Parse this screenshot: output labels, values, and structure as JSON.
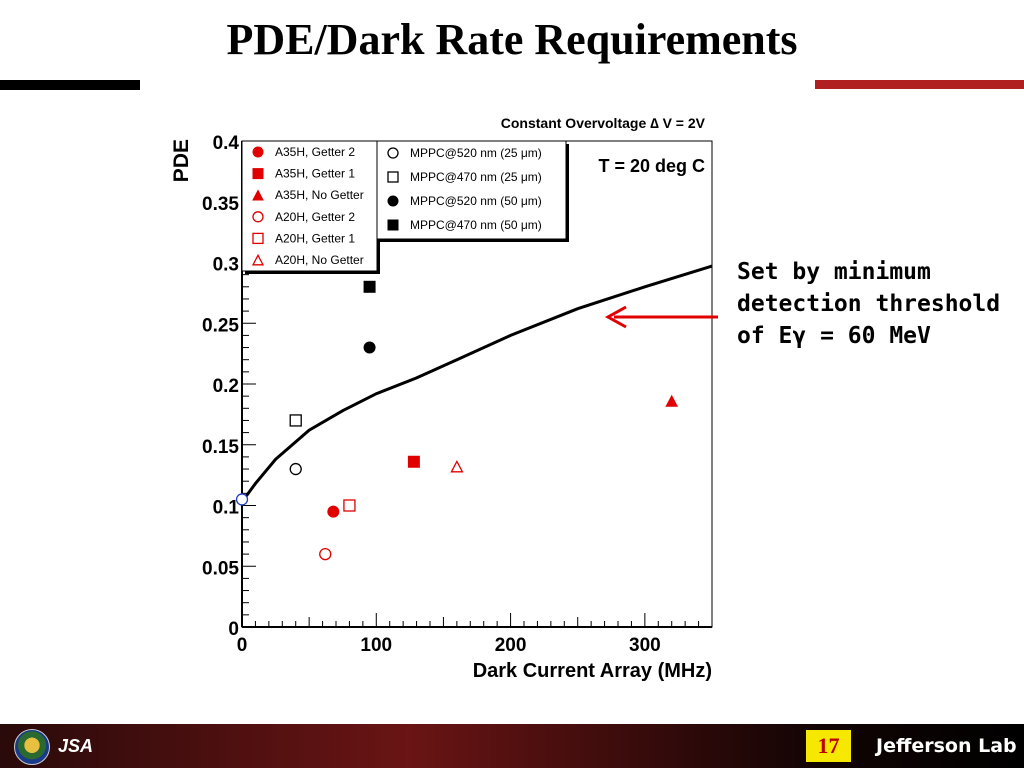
{
  "slide": {
    "title": "PDE/Dark Rate Requirements",
    "page_number": "17",
    "annotation_lines": [
      "Set by minimum",
      "detection threshold",
      "of Eγ = 60 MeV"
    ]
  },
  "footer": {
    "left_logo_text": "JSA",
    "right_logo_text": "Jefferson Lab"
  },
  "colors": {
    "red": "#e00000",
    "black": "#000000",
    "arrow": "#e00000",
    "accent_bar": "#b02020",
    "page_box": "#f6e800"
  },
  "chart_data": {
    "type": "scatter",
    "title": "Constant Overvoltage ∆ V = 2V",
    "xlabel": "Dark Current Array (MHz)",
    "ylabel": "PDE",
    "xlim": [
      0,
      350
    ],
    "ylim": [
      0,
      0.4
    ],
    "x_ticks": [
      0,
      100,
      200,
      300
    ],
    "y_ticks": [
      0,
      0.05,
      0.1,
      0.15,
      0.2,
      0.25,
      0.3,
      0.35,
      0.4
    ],
    "x_tick_labels": [
      "0",
      "100",
      "200",
      "300"
    ],
    "y_tick_labels": [
      "0",
      "0.05",
      "0.1",
      "0.15",
      "0.2",
      "0.25",
      "0.3",
      "0.35",
      "0.4"
    ],
    "text_annotation": "T = 20 deg C",
    "grid": false,
    "legends": [
      {
        "placement": "top-left",
        "entries": [
          0,
          1,
          2,
          3,
          4,
          5
        ]
      },
      {
        "placement": "top-center",
        "entries": [
          6,
          7,
          8,
          9
        ]
      }
    ],
    "series": [
      {
        "name": "A35H, Getter 2",
        "marker": "circle",
        "filled": true,
        "color": "#e00000",
        "points": [
          [
            68,
            0.095
          ]
        ]
      },
      {
        "name": "A35H, Getter 1",
        "marker": "square",
        "filled": true,
        "color": "#e00000",
        "points": [
          [
            128,
            0.136
          ]
        ]
      },
      {
        "name": "A35H, No Getter",
        "marker": "triangle",
        "filled": true,
        "color": "#e00000",
        "points": [
          [
            320,
            0.186
          ]
        ]
      },
      {
        "name": "A20H, Getter 2",
        "marker": "circle",
        "filled": false,
        "color": "#e00000",
        "points": [
          [
            62,
            0.06
          ]
        ]
      },
      {
        "name": "A20H, Getter 1",
        "marker": "square",
        "filled": false,
        "color": "#e00000",
        "points": [
          [
            80,
            0.1
          ]
        ]
      },
      {
        "name": "A20H, No Getter",
        "marker": "triangle",
        "filled": false,
        "color": "#e00000",
        "points": [
          [
            160,
            0.132
          ]
        ]
      },
      {
        "name": "MPPC@520 nm (25 μm)",
        "marker": "circle",
        "filled": false,
        "color": "#000000",
        "points": [
          [
            40,
            0.13
          ]
        ]
      },
      {
        "name": "MPPC@470 nm (25 μm)",
        "marker": "square",
        "filled": false,
        "color": "#000000",
        "points": [
          [
            40,
            0.17
          ]
        ]
      },
      {
        "name": "MPPC@520 nm (50 μm)",
        "marker": "circle",
        "filled": true,
        "color": "#000000",
        "points": [
          [
            95,
            0.23
          ]
        ]
      },
      {
        "name": "MPPC@470 nm (50 μm)",
        "marker": "square",
        "filled": true,
        "color": "#000000",
        "points": [
          [
            95,
            0.28
          ]
        ]
      }
    ],
    "extra_point": {
      "marker": "circle",
      "filled": false,
      "color": "#2040c0",
      "point": [
        0,
        0.105
      ]
    },
    "curve": {
      "name": "requirement",
      "points": [
        [
          0,
          0.103
        ],
        [
          10,
          0.118
        ],
        [
          25,
          0.138
        ],
        [
          50,
          0.162
        ],
        [
          75,
          0.178
        ],
        [
          100,
          0.192
        ],
        [
          130,
          0.205
        ],
        [
          160,
          0.22
        ],
        [
          200,
          0.24
        ],
        [
          250,
          0.262
        ],
        [
          300,
          0.28
        ],
        [
          350,
          0.297
        ]
      ]
    }
  }
}
